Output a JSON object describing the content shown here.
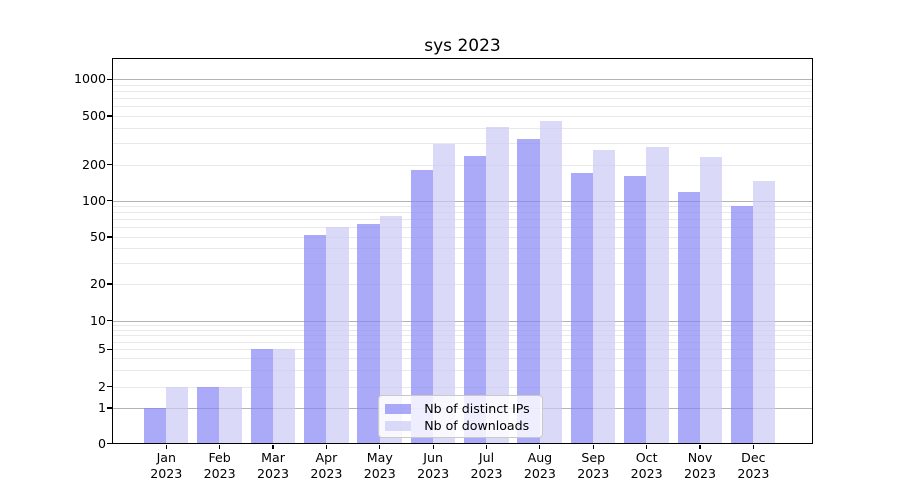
{
  "title": "sys 2023",
  "chart_data": {
    "type": "bar",
    "title": "sys 2023",
    "categories": [
      "Jan 2023",
      "Feb 2023",
      "Mar 2023",
      "Apr 2023",
      "May 2023",
      "Jun 2023",
      "Jul 2023",
      "Aug 2023",
      "Sep 2023",
      "Oct 2023",
      "Nov 2023",
      "Dec 2023"
    ],
    "series": [
      {
        "name": "Nb of distinct IPs",
        "color": "#aaaaf8",
        "values": [
          1,
          2,
          5,
          52,
          64,
          181,
          233,
          324,
          169,
          161,
          119,
          91
        ]
      },
      {
        "name": "Nb of downloads",
        "color": "#dadaf8",
        "values": [
          2,
          2,
          5,
          61,
          74,
          293,
          407,
          456,
          262,
          279,
          230,
          146
        ]
      }
    ],
    "yscale": "log",
    "ytick_values": [
      0,
      1,
      2,
      5,
      10,
      20,
      50,
      100,
      200,
      500,
      1000
    ],
    "ylim": [
      0,
      1450
    ],
    "xlabel": "",
    "ylabel": "",
    "grid": true,
    "legend_position": "lower center"
  },
  "colors": {
    "bar_dark_rgba": "rgba(134,134,245,0.7)",
    "bar_light_rgba": "rgba(202,202,245,0.7)",
    "grid_major": "#b3b3b3",
    "grid_minor": "#e9e9e9",
    "spine": "#000000",
    "background": "#ffffff"
  }
}
